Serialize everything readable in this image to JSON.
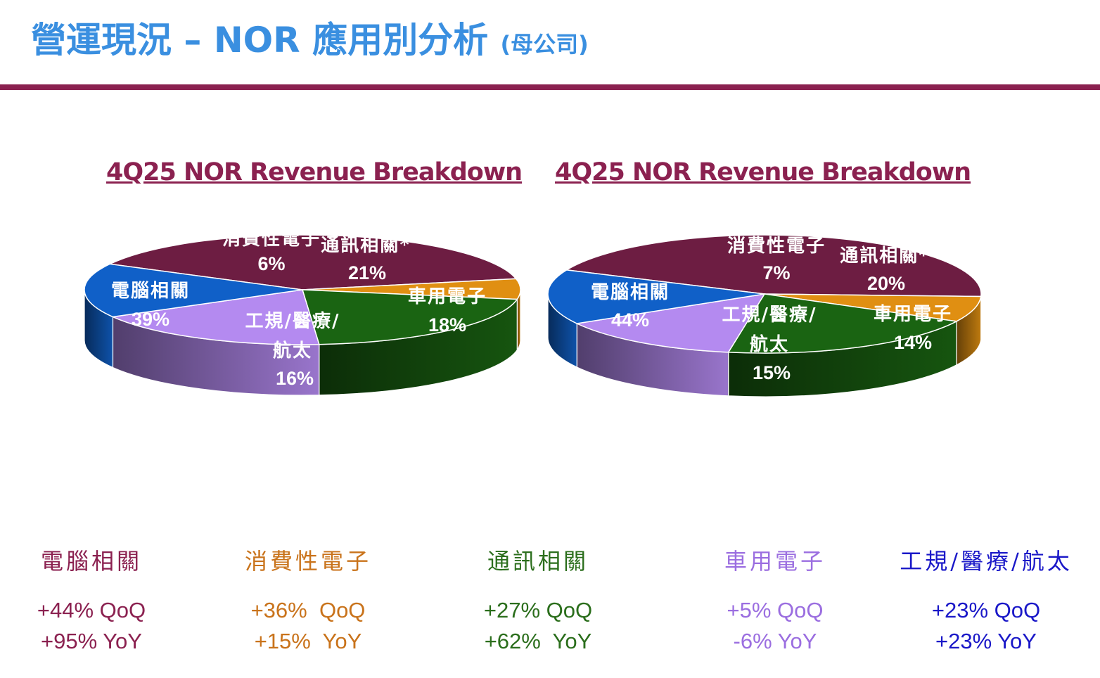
{
  "header": {
    "title": "營運現況 – NOR 應用別分析",
    "subtitle": "(母公司)",
    "rule_color": "#8b2150",
    "title_color": "#3a8fe0"
  },
  "chart_data": [
    {
      "type": "pie",
      "title": "4Q25 NOR Revenue Breakdown",
      "slices": [
        {
          "label": "電腦相關",
          "value": 39,
          "value_label": "39%",
          "color": "#6d1d42"
        },
        {
          "label": "消費性電子",
          "value": 6,
          "value_label": "6%",
          "color": "#e08f12"
        },
        {
          "label": "通訊相關*",
          "value": 21,
          "value_label": "21%",
          "color": "#1a6412"
        },
        {
          "label": "車用電子",
          "value": 18,
          "value_label": "18%",
          "color": "#b48af0"
        },
        {
          "label": "工規/醫療/航太",
          "value": 16,
          "value_label": "16%",
          "color": "#1060c8"
        }
      ]
    },
    {
      "type": "pie",
      "title": "4Q25 NOR Revenue Breakdown",
      "slices": [
        {
          "label": "電腦相關",
          "value": 44,
          "value_label": "44%",
          "color": "#6d1d42"
        },
        {
          "label": "消費性電子",
          "value": 7,
          "value_label": "7%",
          "color": "#e08f12"
        },
        {
          "label": "通訊相關*",
          "value": 20,
          "value_label": "20%",
          "color": "#1a6412"
        },
        {
          "label": "車用電子",
          "value": 14,
          "value_label": "14%",
          "color": "#b48af0"
        },
        {
          "label": "工規/醫療/航太",
          "value": 15,
          "value_label": "15%",
          "color": "#1060c8"
        }
      ]
    }
  ],
  "growth": [
    {
      "name": "電腦相關",
      "qoq": "+44% QoQ",
      "yoy": "+95% YoY",
      "color": "#8b2150"
    },
    {
      "name": "消費性電子",
      "qoq": "+36%  QoQ",
      "yoy": "+15%  YoY",
      "color": "#c9731b"
    },
    {
      "name": "通訊相關",
      "qoq": "+27% QoQ",
      "yoy": "+62%  YoY",
      "color": "#2b6e1c"
    },
    {
      "name": "車用電子",
      "qoq": "+5% QoQ",
      "yoy": "-6% YoY",
      "color": "#9b6ee0"
    },
    {
      "name": "工規/醫療/航太",
      "qoq": "+23% QoQ",
      "yoy": "+23% YoY",
      "color": "#1a18c8"
    }
  ]
}
